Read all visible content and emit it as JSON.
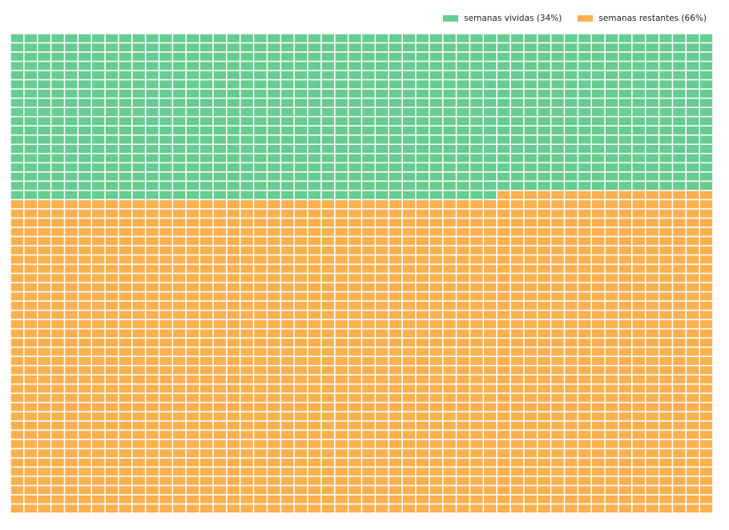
{
  "chart_data": {
    "type": "waffle",
    "title": "",
    "grid": {
      "columns": 52,
      "rows": 52
    },
    "fill_order": "row-major-from-top-left",
    "series": [
      {
        "name": "semanas vividas (34%)",
        "count": 920,
        "color": "#66cc91"
      },
      {
        "name": "semanas restantes (66%)",
        "count": 1784,
        "color": "#fbb050"
      }
    ],
    "legend_placement": "top-right"
  }
}
